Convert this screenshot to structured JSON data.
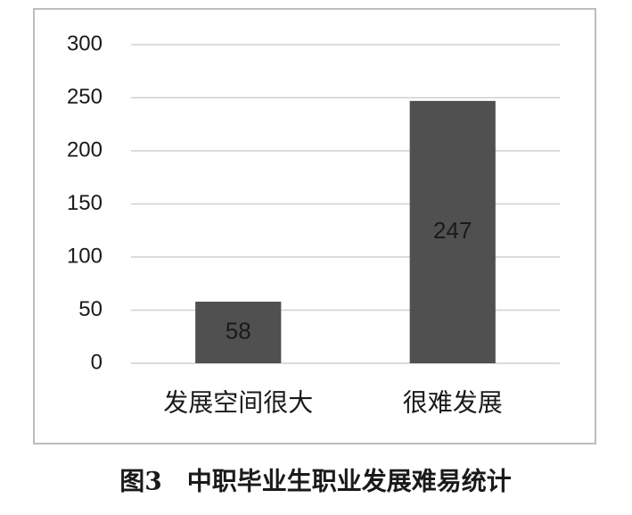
{
  "chart_data": {
    "type": "bar",
    "title": "图3　中职毕业生职业发展难易统计",
    "categories": [
      "发展空间很大",
      "很难发展"
    ],
    "values": [
      58,
      247
    ],
    "color": "#505050",
    "ylim": [
      0,
      300
    ],
    "yticks": [
      0,
      50,
      100,
      150,
      200,
      250,
      300
    ],
    "grid": true
  }
}
